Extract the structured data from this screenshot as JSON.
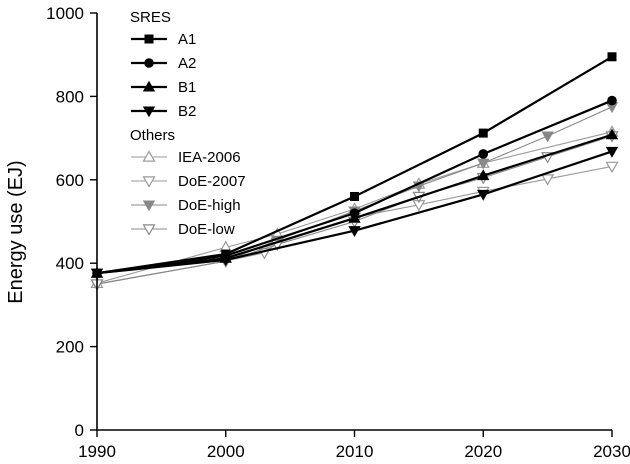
{
  "chart_data": {
    "type": "line",
    "title": "",
    "xlabel": "",
    "ylabel": "Energy use (EJ)",
    "xlim": [
      1990,
      2030
    ],
    "ylim": [
      0,
      1000
    ],
    "x_ticks": [
      1990,
      2000,
      2010,
      2020,
      2030
    ],
    "y_ticks": [
      0,
      200,
      400,
      600,
      800,
      1000
    ],
    "grid": false,
    "legend_placement": "top-left",
    "legend_groups": [
      {
        "title": "SRES",
        "series": [
          "A1",
          "A2",
          "B1",
          "B2"
        ]
      },
      {
        "title": "Others",
        "series": [
          "IEA-2006",
          "DoE-2007",
          "DoE-high",
          "DoE-low"
        ]
      }
    ],
    "series": [
      {
        "name": "A1",
        "marker": "square",
        "color": "#000000",
        "style": "bold",
        "points": [
          [
            1990,
            376
          ],
          [
            2000,
            422
          ],
          [
            2010,
            560
          ],
          [
            2020,
            712
          ],
          [
            2030,
            895
          ]
        ]
      },
      {
        "name": "A2",
        "marker": "circle",
        "color": "#000000",
        "style": "bold",
        "points": [
          [
            1990,
            376
          ],
          [
            2000,
            418
          ],
          [
            2010,
            520
          ],
          [
            2020,
            662
          ],
          [
            2030,
            790
          ]
        ]
      },
      {
        "name": "B1",
        "marker": "triangle-up",
        "color": "#000000",
        "style": "bold",
        "points": [
          [
            1990,
            376
          ],
          [
            2000,
            412
          ],
          [
            2010,
            508
          ],
          [
            2020,
            610
          ],
          [
            2030,
            708
          ]
        ]
      },
      {
        "name": "B2",
        "marker": "triangle-down",
        "color": "#000000",
        "style": "bold",
        "points": [
          [
            1990,
            376
          ],
          [
            2000,
            408
          ],
          [
            2010,
            478
          ],
          [
            2020,
            565
          ],
          [
            2030,
            668
          ]
        ]
      },
      {
        "name": "IEA-2006",
        "marker": "triangle-up-open",
        "color": "#9a9a9a",
        "style": "thin",
        "points": [
          [
            1990,
            352
          ],
          [
            2000,
            438
          ],
          [
            2004,
            470
          ],
          [
            2010,
            530
          ],
          [
            2015,
            590
          ],
          [
            2020,
            640
          ],
          [
            2030,
            715
          ]
        ]
      },
      {
        "name": "DoE-2007",
        "marker": "triangle-down-open",
        "color": "#9a9a9a",
        "style": "thin",
        "points": [
          [
            1990,
            350
          ],
          [
            2000,
            405
          ],
          [
            2003,
            425
          ],
          [
            2004,
            448
          ],
          [
            2010,
            510
          ],
          [
            2015,
            540
          ],
          [
            2020,
            572
          ],
          [
            2025,
            602
          ],
          [
            2030,
            632
          ]
        ]
      },
      {
        "name": "DoE-high",
        "marker": "triangle-down-filled",
        "color": "#888888",
        "style": "thin",
        "points": [
          [
            1990,
            350
          ],
          [
            2000,
            405
          ],
          [
            2004,
            455
          ],
          [
            2010,
            525
          ],
          [
            2015,
            585
          ],
          [
            2020,
            640
          ],
          [
            2025,
            705
          ],
          [
            2030,
            775
          ]
        ]
      },
      {
        "name": "DoE-low",
        "marker": "triangle-down-open",
        "color": "#888888",
        "style": "thin",
        "points": [
          [
            1990,
            350
          ],
          [
            2000,
            405
          ],
          [
            2004,
            445
          ],
          [
            2010,
            500
          ],
          [
            2015,
            560
          ],
          [
            2020,
            605
          ],
          [
            2025,
            655
          ],
          [
            2030,
            705
          ]
        ]
      }
    ]
  }
}
